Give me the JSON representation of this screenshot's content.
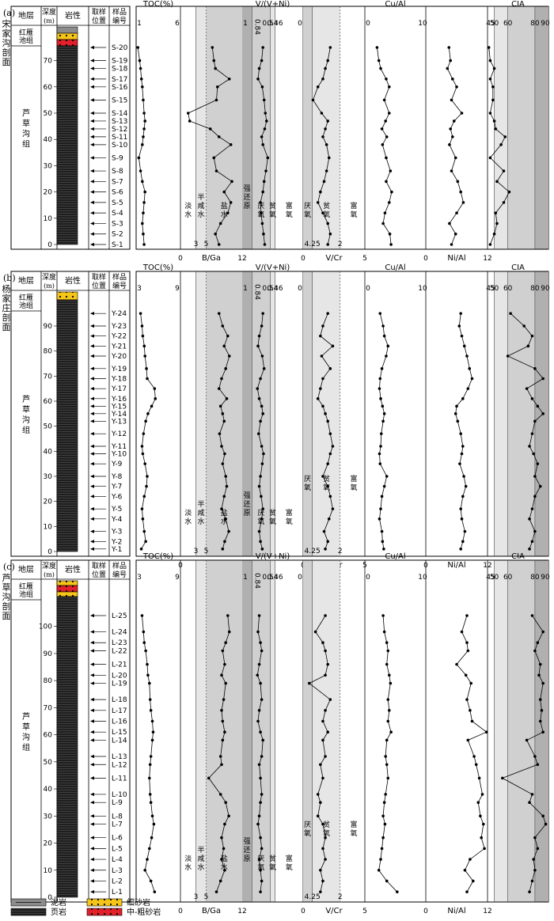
{
  "figure": {
    "column_headers": {
      "strata": "地层",
      "depth": "深度",
      "depth_unit": "(m)",
      "lithology": "岩性",
      "sampling": [
        "取样",
        "位置"
      ],
      "sample_id": [
        "样品",
        "编号"
      ]
    },
    "formation_upper": "红雁池组",
    "formation_main": "芦草沟组",
    "salinity_zones": [
      "淡水",
      "半咸水",
      "盐水"
    ],
    "redox_vnin": [
      "富氧",
      "贫氧",
      "厌氧",
      "强还原"
    ],
    "redox_vcr": [
      "富氧",
      "贫氧",
      "厌氧"
    ],
    "legend": [
      {
        "label": "泥岩",
        "swatch": "mudstone"
      },
      {
        "label": "细砂岩",
        "swatch": "fine-sandstone"
      },
      {
        "label": "页岩",
        "swatch": "shale"
      },
      {
        "label": "中-粗砂岩",
        "swatch": "coarse-sandstone"
      }
    ],
    "colors": {
      "shale": "#1f1f1f",
      "mudstone": "#8c8c8c",
      "sand_yellow": "#f5c518",
      "sand_red": "#e0202a",
      "shade_light": "#e6e6e6",
      "shade_mid": "#d0d0d0",
      "shade_dark": "#b0b0b0"
    }
  },
  "chart_data": [
    {
      "type": "line",
      "panel": "(a)",
      "section": "宋家沟剖面",
      "depth_ticks": [
        0,
        10,
        20,
        30,
        40,
        50,
        60,
        70
      ],
      "samples": [
        "S-20",
        "S-19",
        "S-18",
        "S-17",
        "S-16",
        "S-15",
        "S-14",
        "S-13",
        "S-12",
        "S-11",
        "S-10",
        "S-9",
        "S-8",
        "S-7",
        "S-6",
        "S-5",
        "S-4",
        "S-3",
        "S-2",
        "S-1"
      ],
      "sample_depths": [
        75,
        70,
        67,
        63,
        60,
        55,
        50,
        47,
        44,
        41,
        38,
        33,
        28,
        24,
        20,
        16,
        12,
        8,
        4,
        0
      ],
      "columns": [
        {
          "key": "TOC",
          "title": "TOC(%)",
          "range": [
            1,
            6
          ],
          "tick_labels_top": [
            "1",
            "6"
          ],
          "values": [
            1.2,
            1.4,
            1.5,
            1.6,
            1.7,
            1.8,
            1.9,
            2.0,
            1.9,
            1.8,
            1.7,
            1.3,
            1.5,
            1.7,
            2.0,
            1.9,
            1.8,
            1.7,
            1.8,
            1.9
          ]
        },
        {
          "key": "B/Ga",
          "title": "B/Ga",
          "range": [
            0,
            12
          ],
          "tick_labels_bottom": [
            "0",
            "12"
          ],
          "boundaries": [
            "3",
            "5"
          ],
          "values": [
            6.2,
            6.5,
            6.8,
            9.5,
            7.2,
            7.0,
            1.5,
            1.8,
            5.8,
            7.5,
            9.8,
            6.5,
            7.0,
            10.0,
            8.5,
            9.8,
            9.2,
            7.8,
            6.8,
            7.5
          ]
        },
        {
          "key": "V/(V+Ni)",
          "title": "V/(V+Ni)",
          "range": [
            0,
            1
          ],
          "tick_labels_top": [
            "0",
            "1"
          ],
          "boundaries": [
            "0.46",
            "0.54",
            "0.84"
          ],
          "values": [
            0.66,
            0.68,
            0.72,
            0.74,
            0.67,
            0.64,
            0.62,
            0.6,
            0.63,
            0.68,
            0.66,
            0.58,
            0.61,
            0.64,
            0.66,
            0.7,
            0.69,
            0.67,
            0.65,
            0.63
          ]
        },
        {
          "key": "V/Cr",
          "title": "V/Cr",
          "range": [
            0,
            5
          ],
          "tick_labels_bottom": [
            "0",
            "5"
          ],
          "boundaries": [
            "2",
            "4.25"
          ],
          "values": [
            2.8,
            3.0,
            3.2,
            3.4,
            3.8,
            4.2,
            3.5,
            3.0,
            3.2,
            3.4,
            3.1,
            2.9,
            3.1,
            3.3,
            3.6,
            3.8,
            3.4,
            3.0,
            2.8,
            3.0
          ]
        },
        {
          "key": "Cu/Al",
          "title": "Cu/Al",
          "range": [
            0,
            10
          ],
          "tick_labels_top": [
            "0",
            "10"
          ],
          "values": [
            2.0,
            2.3,
            2.6,
            3.5,
            4.0,
            3.2,
            4.0,
            3.4,
            2.8,
            3.6,
            2.9,
            3.5,
            4.2,
            3.5,
            4.4,
            4.0,
            3.3,
            3.0,
            4.1,
            4.3
          ]
        },
        {
          "key": "Ni/Al",
          "title": "Ni/Al",
          "range": [
            0,
            12
          ],
          "tick_labels_bottom": [
            "0",
            "12"
          ],
          "values": [
            4.5,
            4.8,
            4.2,
            5.2,
            6.0,
            5.0,
            7.0,
            5.5,
            4.8,
            5.2,
            4.6,
            5.8,
            5.0,
            6.2,
            6.8,
            7.3,
            6.0,
            4.6,
            5.8,
            5.0
          ]
        },
        {
          "key": "CIA",
          "title": "CIA",
          "range": [
            45,
            90
          ],
          "tick_labels_top": [
            "45",
            "90"
          ],
          "boundaries": [
            "50",
            "60",
            "80"
          ],
          "values": [
            46,
            47,
            50,
            47,
            49,
            49,
            47,
            50,
            51,
            58,
            55,
            47,
            57,
            52,
            61,
            57,
            51,
            52,
            50,
            47
          ]
        }
      ]
    },
    {
      "type": "line",
      "panel": "(b)",
      "section": "杨家庄剖面",
      "depth_ticks": [
        0,
        10,
        20,
        30,
        40,
        50,
        60,
        70,
        80,
        90
      ],
      "samples": [
        "Y-24",
        "Y-23",
        "Y-22",
        "Y-21",
        "Y-20",
        "Y-19",
        "Y-18",
        "Y-17",
        "Y-16",
        "Y-15",
        "Y-14",
        "Y-13",
        "Y-12",
        "Y-11",
        "Y-10",
        "Y-9",
        "Y-8",
        "Y-7",
        "Y-6",
        "Y-5",
        "Y-4",
        "Y-3",
        "Y-2",
        "Y-1"
      ],
      "sample_depths": [
        95,
        90,
        86,
        82,
        78,
        73,
        69,
        65,
        61,
        58,
        55,
        52,
        47,
        42,
        39,
        35,
        30,
        26,
        22,
        17,
        13,
        8,
        4,
        1
      ],
      "columns": [
        {
          "key": "TOC",
          "title": "TOC(%)",
          "range": [
            3,
            9
          ],
          "tick_labels_top": [
            "3",
            "9"
          ],
          "values": [
            3.6,
            3.8,
            3.9,
            4.1,
            4.2,
            4.4,
            4.5,
            5.5,
            5.6,
            5.1,
            4.6,
            4.3,
            4.0,
            3.8,
            3.9,
            4.2,
            4.5,
            4.4,
            4.1,
            3.8,
            3.9,
            4.1,
            4.3,
            3.7
          ]
        },
        {
          "key": "B/Ga",
          "title": "B/Ga",
          "range": [
            0,
            12
          ],
          "tick_labels_bottom": [
            "0",
            "12"
          ],
          "boundaries": [
            "3",
            "5"
          ],
          "values": [
            7.5,
            8.2,
            9.2,
            8.5,
            9.5,
            8.8,
            8.0,
            7.5,
            9.0,
            7.8,
            8.2,
            8.5,
            7.6,
            8.0,
            8.6,
            8.2,
            8.8,
            9.0,
            8.5,
            8.0,
            8.8,
            9.4,
            8.6,
            8.2
          ]
        },
        {
          "key": "V/(V+Ni)",
          "title": "V/(V+Ni)",
          "range": [
            0,
            1
          ],
          "tick_labels_top": [
            "0",
            "1"
          ],
          "boundaries": [
            "0.46",
            "0.54",
            "0.84"
          ],
          "values": [
            0.66,
            0.68,
            0.72,
            0.74,
            0.67,
            0.64,
            0.7,
            0.75,
            0.72,
            0.68,
            0.66,
            0.7,
            0.73,
            0.68,
            0.65,
            0.67,
            0.7,
            0.72,
            0.69,
            0.66,
            0.68,
            0.72,
            0.7,
            0.67
          ]
        },
        {
          "key": "V/Cr",
          "title": "V/Cr",
          "range": [
            0,
            5
          ],
          "tick_labels_bottom": [
            "0",
            "5"
          ],
          "boundaries": [
            "2",
            "4.25"
          ],
          "values": [
            3.0,
            3.4,
            3.6,
            2.6,
            3.5,
            2.8,
            3.4,
            3.6,
            3.8,
            3.4,
            3.2,
            3.0,
            2.8,
            2.6,
            2.8,
            3.0,
            3.4,
            3.0,
            2.8,
            2.6,
            2.9,
            3.3,
            3.0,
            3.2
          ]
        },
        {
          "key": "Cu/Al",
          "title": "Cu/Al",
          "range": [
            0,
            10
          ],
          "tick_labels_top": [
            "0",
            "10"
          ],
          "values": [
            2.5,
            3.0,
            3.2,
            3.8,
            3.5,
            2.8,
            2.5,
            2.4,
            2.6,
            2.9,
            3.2,
            3.0,
            2.7,
            2.6,
            2.4,
            2.5,
            3.6,
            3.2,
            2.8,
            2.6,
            2.4,
            2.8,
            2.9,
            3.1
          ]
        },
        {
          "key": "Ni/Al",
          "title": "Ni/Al",
          "range": [
            0,
            12
          ],
          "tick_labels_bottom": [
            "0",
            "12"
          ],
          "values": [
            6.8,
            6.5,
            7.0,
            7.5,
            8.0,
            8.5,
            9.0,
            8.2,
            7.2,
            6.0,
            5.8,
            6.2,
            6.8,
            7.2,
            7.0,
            6.6,
            7.4,
            7.8,
            7.2,
            6.8,
            7.0,
            7.6,
            7.2,
            6.8
          ]
        },
        {
          "key": "CIA",
          "title": "CIA",
          "range": [
            45,
            90
          ],
          "tick_labels_top": [
            "45",
            "90"
          ],
          "boundaries": [
            "50",
            "60",
            "80"
          ],
          "values": [
            62,
            72,
            78,
            75,
            60,
            80,
            86,
            74,
            78,
            82,
            86,
            80,
            78,
            76,
            79,
            82,
            80,
            84,
            80,
            78,
            76,
            80,
            78,
            76
          ]
        }
      ]
    },
    {
      "type": "line",
      "panel": "(c)",
      "section": "芦草沟剖面",
      "depth_ticks": [
        0,
        10,
        20,
        30,
        40,
        50,
        60,
        70,
        80,
        90,
        100
      ],
      "samples": [
        "L-25",
        "L-24",
        "L-23",
        "L-22",
        "L-21",
        "L-20",
        "L-19",
        "L-18",
        "L-17",
        "L-16",
        "L-15",
        "L-14",
        "L-13",
        "L-12",
        "L-11",
        "L-10",
        "L-9",
        "L-8",
        "L-7",
        "L-6",
        "L-5",
        "L-4",
        "L-3",
        "L-2",
        "L-1"
      ],
      "sample_depths": [
        104,
        98,
        94,
        91,
        86,
        82,
        79,
        73,
        69,
        65,
        61,
        58,
        52,
        49,
        44,
        38,
        35,
        30,
        27,
        22,
        18,
        14,
        10,
        6,
        2
      ],
      "columns": [
        {
          "key": "TOC",
          "title": "TOC(%)",
          "range": [
            3,
            9
          ],
          "tick_labels_top": [
            "3",
            "9"
          ],
          "values": [
            3.8,
            4.0,
            4.1,
            4.3,
            4.5,
            4.6,
            4.8,
            4.9,
            5.0,
            5.2,
            5.3,
            5.2,
            5.0,
            4.9,
            4.8,
            4.9,
            5.0,
            5.2,
            5.4,
            5.1,
            4.8,
            4.5,
            4.2,
            5.0,
            5.5
          ]
        },
        {
          "key": "B/Ga",
          "title": "B/Ga",
          "range": [
            0,
            12
          ],
          "tick_labels_bottom": [
            "0",
            "12"
          ],
          "boundaries": [
            "3",
            "5"
          ],
          "values": [
            9.2,
            9.5,
            8.8,
            8.2,
            8.6,
            8.0,
            8.8,
            8.4,
            8.0,
            8.2,
            8.6,
            8.2,
            7.8,
            8.0,
            5.5,
            7.8,
            8.8,
            9.4,
            8.6,
            8.0,
            8.4,
            8.0,
            8.6,
            7.8,
            7.0
          ]
        },
        {
          "key": "V/(V+Ni)",
          "title": "V/(V+Ni)",
          "range": [
            0,
            1
          ],
          "tick_labels_top": [
            "0",
            "1"
          ],
          "boundaries": [
            "0.46",
            "0.54",
            "0.84"
          ],
          "values": [
            0.72,
            0.74,
            0.7,
            0.68,
            0.72,
            0.75,
            0.7,
            0.68,
            0.72,
            0.74,
            0.7,
            0.66,
            0.68,
            0.72,
            0.7,
            0.68,
            0.7,
            0.72,
            0.74,
            0.7,
            0.68,
            0.72,
            0.7,
            0.68,
            0.7
          ]
        },
        {
          "key": "V/Cr",
          "title": "V/Cr",
          "range": [
            0,
            5
          ],
          "tick_labels_bottom": [
            "0",
            "5"
          ],
          "boundaries": [
            "2",
            "4.25"
          ],
          "values": [
            3.2,
            4.0,
            3.4,
            3.2,
            3.0,
            3.2,
            4.5,
            2.8,
            3.2,
            3.4,
            3.0,
            3.4,
            3.2,
            3.6,
            3.4,
            3.8,
            3.6,
            3.8,
            3.4,
            3.2,
            3.4,
            3.2,
            3.6,
            3.4,
            3.6
          ]
        },
        {
          "key": "Cu/Al",
          "title": "Cu/Al",
          "range": [
            0,
            10
          ],
          "tick_labels_top": [
            "0",
            "10"
          ],
          "values": [
            3.0,
            3.2,
            3.6,
            3.8,
            3.6,
            4.0,
            4.2,
            3.8,
            4.0,
            3.8,
            4.3,
            3.6,
            3.4,
            3.6,
            3.8,
            3.4,
            3.2,
            3.0,
            3.3,
            3.0,
            2.8,
            2.6,
            2.3,
            3.6,
            5.3
          ]
        },
        {
          "key": "Ni/Al",
          "title": "Ni/Al",
          "range": [
            0,
            12
          ],
          "tick_labels_bottom": [
            "0",
            "12"
          ],
          "values": [
            8.0,
            7.0,
            8.0,
            8.2,
            6.0,
            7.8,
            8.8,
            8.0,
            8.6,
            9.0,
            11.8,
            8.2,
            9.4,
            9.8,
            10.4,
            11.0,
            10.2,
            10.6,
            11.2,
            10.8,
            11.4,
            8.6,
            7.6,
            9.2,
            8.0
          ]
        },
        {
          "key": "CIA",
          "title": "CIA",
          "range": [
            45,
            90
          ],
          "tick_labels_top": [
            "45",
            "90"
          ],
          "boundaries": [
            "50",
            "60",
            "80"
          ],
          "values": [
            78,
            86,
            82,
            80,
            84,
            83,
            86,
            84,
            85,
            84,
            86,
            74,
            80,
            82,
            56,
            78,
            76,
            86,
            88,
            80,
            82,
            79,
            80,
            78,
            76
          ]
        }
      ]
    }
  ]
}
